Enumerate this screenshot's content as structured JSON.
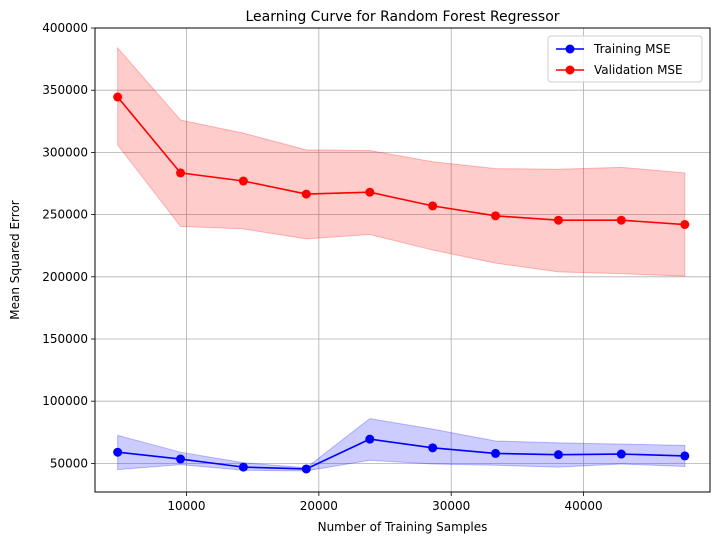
{
  "chart_data": {
    "type": "line",
    "title": "Learning Curve for Random Forest Regressor",
    "xlabel": "Number of Training Samples",
    "ylabel": "Mean Squared Error",
    "xlim": [
      3088,
      49552
    ],
    "ylim": [
      27000,
      400000
    ],
    "xticks": [
      10000,
      20000,
      30000,
      40000
    ],
    "yticks": [
      50000,
      100000,
      150000,
      200000,
      250000,
      300000,
      350000,
      400000
    ],
    "grid": true,
    "legend_position": "top-right",
    "x": [
      4800,
      9550,
      14300,
      19050,
      23850,
      28600,
      33350,
      38100,
      42850,
      47650
    ],
    "series": [
      {
        "name": "Training MSE",
        "color": "#0000ff",
        "fill": "#0000ff",
        "values": [
          59000,
          53500,
          47000,
          45500,
          69500,
          62500,
          58000,
          57000,
          57500,
          56000
        ],
        "lower": [
          45000,
          49000,
          44500,
          44000,
          52500,
          49500,
          48500,
          47000,
          49500,
          47500
        ],
        "upper": [
          72500,
          59000,
          50500,
          46500,
          86000,
          77500,
          68000,
          66500,
          65500,
          64500
        ]
      },
      {
        "name": "Validation MSE",
        "color": "#ff0000",
        "fill": "#ff0000",
        "values": [
          344500,
          283500,
          277000,
          266500,
          268000,
          257000,
          249000,
          245500,
          245500,
          242000
        ],
        "lower": [
          306000,
          240500,
          238500,
          230500,
          234000,
          221500,
          211000,
          204000,
          202500,
          200500
        ],
        "upper": [
          384000,
          326000,
          315500,
          302000,
          301500,
          292500,
          287000,
          286500,
          288000,
          283500
        ]
      }
    ]
  }
}
